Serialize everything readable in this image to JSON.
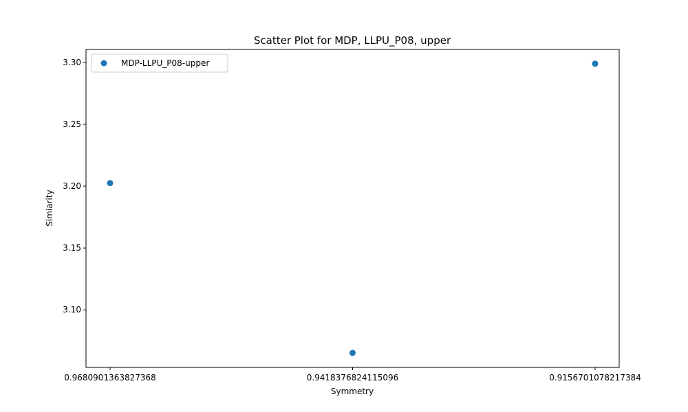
{
  "chart_data": {
    "type": "scatter",
    "title": "Scatter Plot for MDP, LLPU_P08, upper",
    "xlabel": "Symmetry",
    "ylabel": "Simiarity",
    "x_categories": [
      "0.9680901363827368",
      "0.9418376824115096",
      "0.9156701078217384"
    ],
    "series": [
      {
        "name": "MDP-LLPU_P08-upper",
        "color": "#1f77b4",
        "points": [
          {
            "x": "0.9680901363827368",
            "y": 3.2025
          },
          {
            "x": "0.9418376824115096",
            "y": 3.0652
          },
          {
            "x": "0.9156701078217384",
            "y": 3.299
          }
        ]
      }
    ],
    "ylim": [
      3.0535,
      3.3105
    ],
    "yticks": [
      3.1,
      3.15,
      3.2,
      3.25,
      3.3
    ],
    "ytick_labels": [
      "3.10",
      "3.15",
      "3.20",
      "3.25",
      "3.30"
    ],
    "grid": false,
    "legend_position": "top-left"
  }
}
